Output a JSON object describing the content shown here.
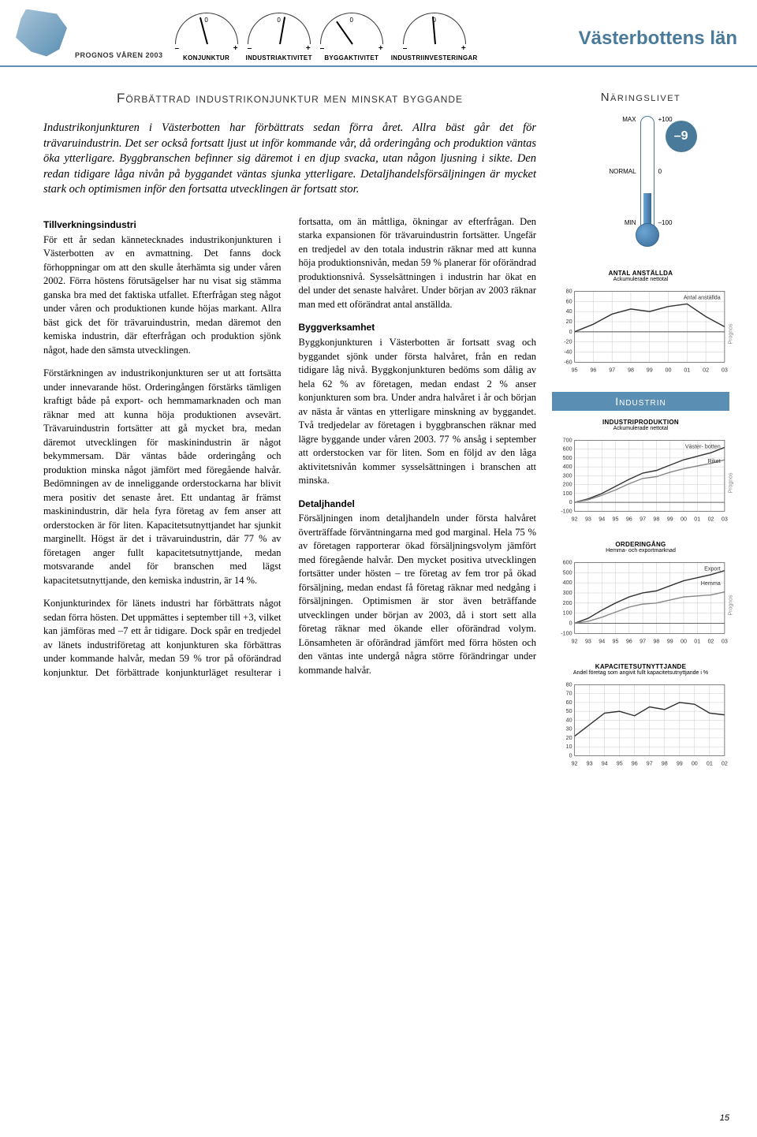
{
  "header": {
    "prognos": "PROGNOS VÅREN 2003",
    "region": "Västerbottens län",
    "gauges": [
      {
        "label": "KONJUNKTUR",
        "angle": -15
      },
      {
        "label": "INDUSTRIAKTIVITET",
        "angle": 10
      },
      {
        "label": "BYGGAKTIVITET",
        "angle": -35
      },
      {
        "label": "INDUSTRIINVESTERINGAR",
        "angle": -5
      }
    ]
  },
  "main": {
    "heading": "Förbättrad industrikonjunktur men minskat byggande",
    "intro": "Industrikonjunkturen i Västerbotten har förbättrats sedan förra året. Allra bäst går det för trävaruindustrin. Det ser också fortsatt ljust ut inför kommande vår, då orderingång och produktion väntas öka ytterligare. Byggbranschen befinner sig däremot i en djup svacka, utan någon ljusning i sikte. Den redan tidigare låga nivån på byggandet väntas sjunka ytterligare. Detaljhandelsförsäljningen är mycket stark och optimismen inför den fortsatta utvecklingen är fortsatt stor.",
    "sections": [
      {
        "h": "Tillverkningsindustri",
        "paras": [
          "För ett år sedan kännetecknades industrikonjunkturen i Västerbotten av en avmattning. Det fanns dock förhoppningar om att den skulle återhämta sig under våren 2002. Förra höstens förutsägelser har nu visat sig stämma ganska bra med det faktiska utfallet. Efterfrågan steg något under våren och produktionen kunde höjas markant. Allra bäst gick det för trävaruindustrin, medan däremot den kemiska industrin, där efterfrågan och produktion sjönk något, hade den sämsta utvecklingen.",
          "Förstärkningen av industrikonjunkturen ser ut att fortsätta under innevarande höst. Orderingången förstärks tämligen kraftigt både på export- och hemmamarknaden och man räknar med att kunna höja produktionen avsevärt. Trävaruindustrin fortsätter att gå mycket bra, medan däremot utvecklingen för maskinindustrin är något bekymmersam. Där väntas både orderingång och produktion minska något jämfört med föregående halvår. Bedömningen av de inneliggande orderstockarna har blivit mera positiv det senaste året. Ett undantag är främst maskinindustrin, där hela fyra företag av fem anser att orderstocken är för liten. Kapacitetsutnyttjandet har sjunkit marginellt. Högst är det i trävaruindustrin, där 77 % av företagen anger fullt kapacitetsutnyttjande, medan motsvarande andel för branschen med lägst kapacitetsutnyttjande, den kemiska industrin, är 14 %.",
          "Konjunkturindex för länets industri har förbättrats något sedan förra hösten. Det uppmättes i september till +3, vilket kan jämföras med –7 ett år tidigare. Dock spår en tredjedel av länets industriföretag att konjunkturen ska förbättras under kommande halvår, medan 59 % tror på oförändrad konjunktur. Det förbättrade konjunkturläget resulterar i fortsatta, om än måttliga, ökningar av efterfrågan. Den starka expansionen för trävaruindustrin fortsätter. Ungefär en tredjedel av den totala industrin räknar med att kunna höja produktionsnivån, medan 59 % planerar för oförändrad produktionsnivå. Sysselsättningen i industrin har ökat en del under det senaste halvåret. Under början av 2003 räknar man med ett oförändrat antal anställda."
        ]
      },
      {
        "h": "Byggverksamhet",
        "paras": [
          "Byggkonjunkturen i Västerbotten är fortsatt svag och byggandet sjönk under första halvåret, från en redan tidigare låg nivå. Byggkonjunkturen bedöms som dålig av hela 62 % av företagen, medan endast 2 % anser konjunkturen som bra. Under andra halvåret i år och början av nästa år väntas en ytterligare minskning av byggandet. Två tredjedelar av företagen i byggbranschen räknar med lägre byggande under våren 2003. 77 % ansåg i september att orderstocken var för liten. Som en följd av den låga aktivitetsnivån kommer sysselsättningen i branschen att minska."
        ]
      },
      {
        "h": "Detaljhandel",
        "paras": [
          "Försäljningen inom detaljhandeln under första halvåret överträffade förväntningarna med god marginal. Hela 75 % av företagen rapporterar ökad försäljningsvolym jämfört med föregående halvår. Den mycket positiva utvecklingen fortsätter under hösten – tre företag av fem tror på ökad försäljning, medan endast få företag räknar med nedgång i försäljningen. Optimismen är stor även beträffande utvecklingen under början av 2003, då i stort sett alla företag räknar med ökande eller oförändrad volym. Lönsamheten är oförändrad jämfört med förra hösten och den väntas inte undergå några större förändringar under kommande halvår."
        ]
      }
    ]
  },
  "sidebar": {
    "heading": "Näringslivet",
    "thermo": {
      "left": [
        "MAX",
        "NORMAL",
        "MIN"
      ],
      "right": [
        "+100",
        "0",
        "–100"
      ],
      "value": "–9",
      "fill_pct": 32,
      "fill_color": "#3a6a95"
    },
    "chart1": {
      "title": "ANTAL ANSTÄLLDA",
      "subtitle": "Ackumulerade nettotal",
      "type": "line",
      "ylim": [
        -60,
        80
      ],
      "yticks": [
        -60,
        -40,
        -20,
        0,
        20,
        40,
        60,
        80
      ],
      "xticks": [
        "95",
        "96",
        "97",
        "98",
        "99",
        "00",
        "01",
        "02",
        "03"
      ],
      "series": [
        {
          "label": "Antal anställda",
          "color": "#333333",
          "values": [
            0,
            15,
            35,
            45,
            40,
            50,
            55,
            30,
            10
          ]
        }
      ],
      "prognos_label": "Prognos",
      "background": "#ffffff",
      "grid_color": "#cccccc"
    },
    "industrin_heading": "Industrin",
    "chart2": {
      "title": "INDUSTRIPRODUKTION",
      "subtitle": "Ackumulerade nettotal",
      "type": "line",
      "ylim": [
        -100,
        700
      ],
      "yticks": [
        -100,
        0,
        100,
        200,
        300,
        400,
        500,
        600,
        700
      ],
      "xticks": [
        "92",
        "93",
        "94",
        "95",
        "96",
        "97",
        "98",
        "99",
        "00",
        "01",
        "02",
        "03"
      ],
      "series": [
        {
          "label": "Väster- botten",
          "color": "#333333",
          "values": [
            0,
            40,
            100,
            180,
            260,
            330,
            360,
            420,
            480,
            520,
            560,
            620
          ]
        },
        {
          "label": "Riket",
          "color": "#888888",
          "values": [
            0,
            30,
            80,
            140,
            210,
            270,
            290,
            340,
            380,
            410,
            440,
            480
          ]
        }
      ],
      "prognos_label": "Prognos",
      "background": "#ffffff",
      "grid_color": "#cccccc"
    },
    "chart3": {
      "title": "ORDERINGÅNG",
      "subtitle": "Hemma- och exportmarknad",
      "type": "line",
      "ylim": [
        -100,
        600
      ],
      "yticks": [
        -100,
        0,
        100,
        200,
        300,
        400,
        500,
        600
      ],
      "xticks": [
        "92",
        "93",
        "94",
        "95",
        "96",
        "97",
        "98",
        "99",
        "00",
        "01",
        "02",
        "03"
      ],
      "series": [
        {
          "label": "Export",
          "color": "#333333",
          "values": [
            0,
            50,
            130,
            200,
            260,
            300,
            320,
            370,
            420,
            450,
            480,
            520
          ]
        },
        {
          "label": "Hemma",
          "color": "#888888",
          "values": [
            0,
            20,
            60,
            110,
            160,
            190,
            200,
            230,
            260,
            270,
            280,
            310
          ]
        }
      ],
      "prognos_label": "Prognos",
      "background": "#ffffff",
      "grid_color": "#cccccc"
    },
    "chart4": {
      "title": "KAPACITETSUTNYTTJANDE",
      "subtitle": "Andel företag som angivit fullt kapacitetsutnyttjande i %",
      "type": "line",
      "ylim": [
        0,
        80
      ],
      "yticks": [
        0,
        10,
        20,
        30,
        40,
        50,
        60,
        70,
        80
      ],
      "xticks": [
        "92",
        "93",
        "94",
        "95",
        "96",
        "97",
        "98",
        "99",
        "00",
        "01",
        "02"
      ],
      "series": [
        {
          "label": "",
          "color": "#333333",
          "values": [
            22,
            35,
            48,
            50,
            45,
            55,
            52,
            60,
            58,
            48,
            46
          ]
        }
      ],
      "background": "#ffffff",
      "grid_color": "#cccccc"
    }
  },
  "page_number": "15"
}
